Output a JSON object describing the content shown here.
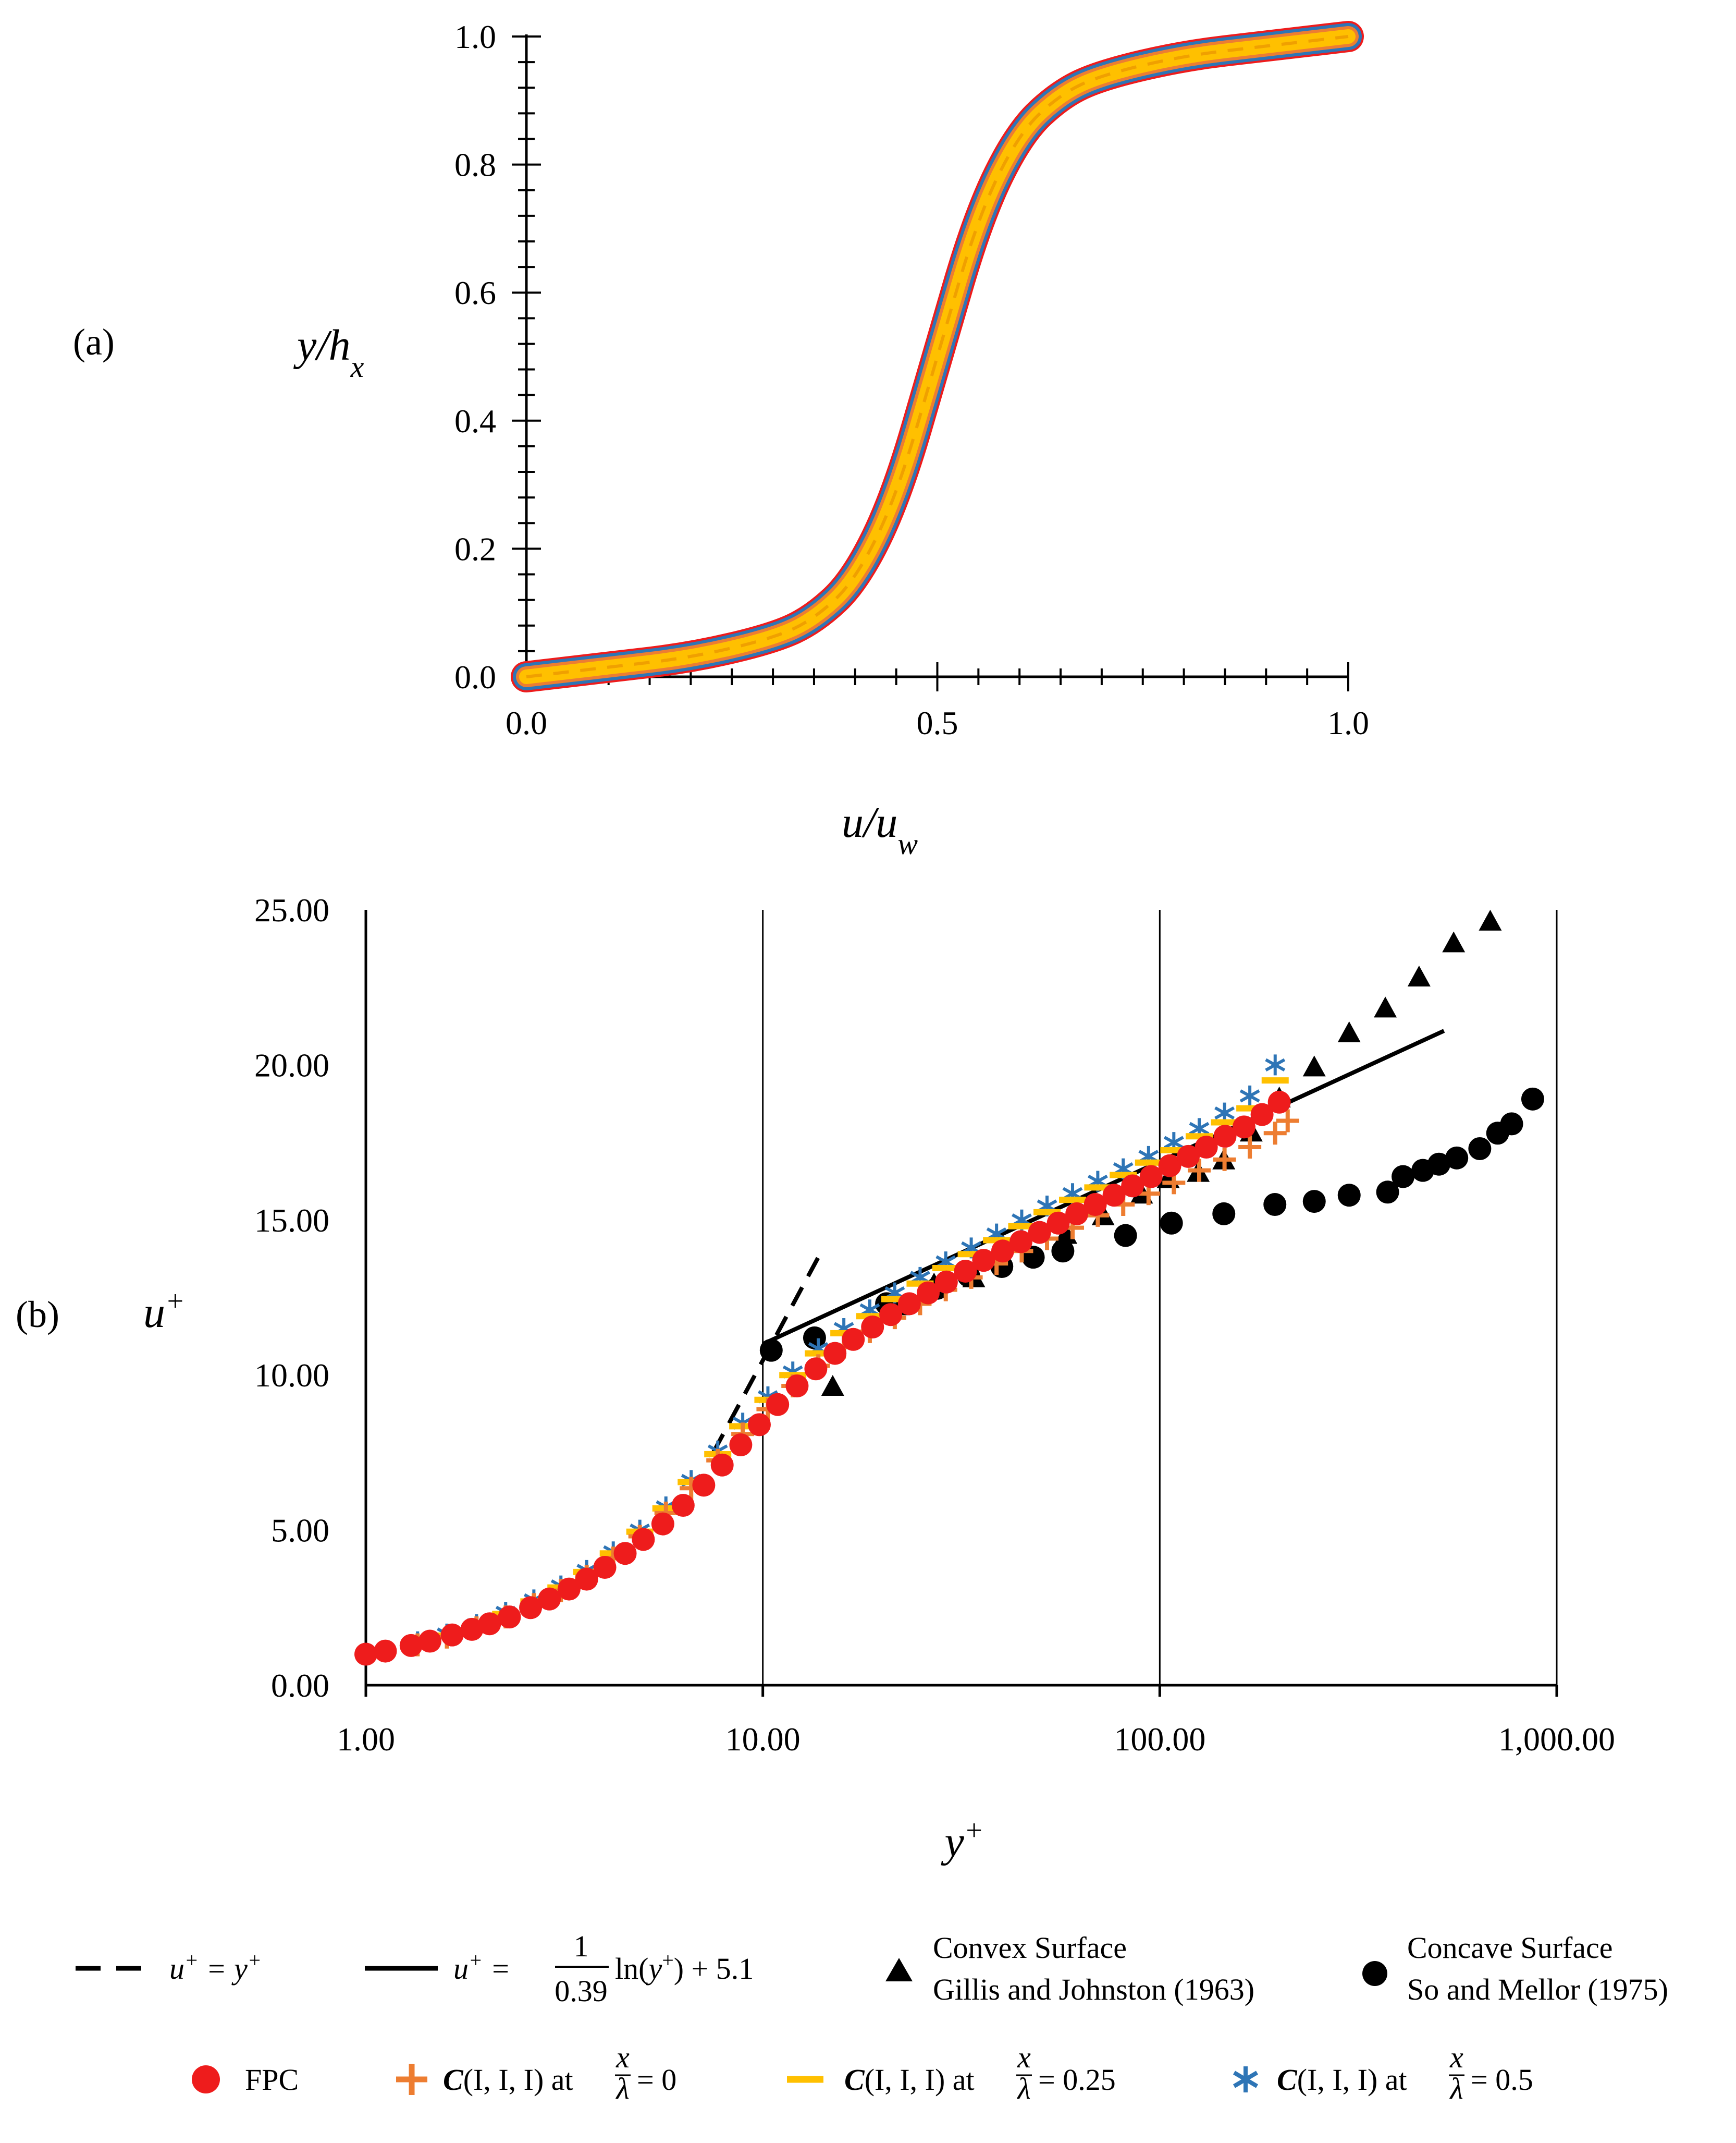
{
  "colors": {
    "fpc": "#ee1c1c",
    "c0": "#ed7d31",
    "c025": "#ffc000",
    "c05": "#2e75b6",
    "black": "#000000"
  },
  "panel_a": {
    "label": "(a)",
    "ylabel": "y/h_x",
    "xlabel": "u/u_w",
    "xticks": [
      "0.0",
      "0.5",
      "1.0"
    ],
    "yticks": [
      "0.0",
      "0.2",
      "0.4",
      "0.6",
      "0.8",
      "1.0"
    ]
  },
  "panel_b": {
    "label": "(b)",
    "ylabel": "u+",
    "xlabel": "y+",
    "xticks": [
      "1.00",
      "10.00",
      "100.00",
      "1,000.00"
    ],
    "yticks": [
      "0.00",
      "5.00",
      "10.00",
      "15.00",
      "20.00",
      "25.00"
    ]
  },
  "legend": {
    "viscous": "u+ = y+",
    "loglaw_prefix": "u+ =",
    "loglaw_num": "1",
    "loglaw_den": "0.39",
    "loglaw_suffix": "ln(y+) + 5.1",
    "convex_line1": "Convex Surface",
    "convex_line2": "Gillis  and Johnston (1963)",
    "concave_line1": "Concave Surface",
    "concave_line2": "So and Mellor  (1975)",
    "fpc": "FPC",
    "c_prefix": "C",
    "c_args": "(I, I, I) at",
    "frac_num": "x",
    "frac_den": "λ",
    "val0": "= 0",
    "val025": "= 0.25",
    "val05": "= 0.5"
  },
  "chart_data": [
    {
      "type": "line",
      "title": "",
      "xlabel": "u/u_w",
      "ylabel": "y/h_x",
      "xlim": [
        0,
        1
      ],
      "ylim": [
        0,
        1
      ],
      "series": [
        {
          "name": "FPC",
          "x": [
            0.0,
            0.1,
            0.2,
            0.3,
            0.35,
            0.4,
            0.45,
            0.5,
            0.55,
            0.6,
            0.65,
            0.7,
            0.8,
            0.9,
            1.0
          ],
          "y": [
            0.0,
            0.015,
            0.03,
            0.06,
            0.09,
            0.15,
            0.28,
            0.5,
            0.72,
            0.85,
            0.91,
            0.94,
            0.97,
            0.985,
            1.0
          ]
        },
        {
          "name": "C(I, I, I) at x/λ = 0",
          "x": [
            0.0,
            0.1,
            0.2,
            0.3,
            0.35,
            0.4,
            0.45,
            0.5,
            0.55,
            0.6,
            0.65,
            0.7,
            0.8,
            0.9,
            1.0
          ],
          "y": [
            0.0,
            0.015,
            0.03,
            0.06,
            0.09,
            0.15,
            0.28,
            0.5,
            0.72,
            0.85,
            0.91,
            0.94,
            0.97,
            0.985,
            1.0
          ]
        },
        {
          "name": "C(I, I, I) at x/λ = 0.25",
          "x": [
            0.0,
            0.1,
            0.2,
            0.3,
            0.35,
            0.4,
            0.45,
            0.5,
            0.55,
            0.6,
            0.65,
            0.7,
            0.8,
            0.9,
            1.0
          ],
          "y": [
            0.0,
            0.015,
            0.03,
            0.06,
            0.09,
            0.15,
            0.28,
            0.5,
            0.72,
            0.85,
            0.91,
            0.94,
            0.97,
            0.985,
            1.0
          ]
        },
        {
          "name": "C(I, I, I) at x/λ = 0.5",
          "x": [
            0.0,
            0.1,
            0.2,
            0.3,
            0.35,
            0.4,
            0.45,
            0.5,
            0.55,
            0.6,
            0.65,
            0.7,
            0.8,
            0.9,
            1.0
          ],
          "y": [
            0.0,
            0.015,
            0.03,
            0.06,
            0.09,
            0.15,
            0.28,
            0.5,
            0.72,
            0.85,
            0.91,
            0.94,
            0.97,
            0.985,
            1.0
          ]
        }
      ]
    },
    {
      "type": "scatter",
      "title": "",
      "xlabel": "y+",
      "ylabel": "u+",
      "xscale": "log",
      "xlim": [
        1,
        1000
      ],
      "ylim": [
        0,
        25
      ],
      "grid": "vertical lines at decades",
      "lines": [
        {
          "name": "u+ = y+",
          "style": "dashed",
          "x": [
            7.5,
            13.8
          ],
          "y": [
            7.5,
            13.8
          ]
        },
        {
          "name": "u+ = (1/0.39) ln(y+) + 5.1",
          "style": "solid",
          "x": [
            10,
            520
          ],
          "y": [
            11.0,
            21.1
          ]
        }
      ],
      "series": [
        {
          "name": "FPC",
          "marker": "circle",
          "x": [
            1.0,
            1.12,
            1.3,
            1.45,
            1.65,
            1.85,
            2.05,
            2.3,
            2.6,
            2.9,
            3.25,
            3.6,
            4.0,
            4.5,
            5.0,
            5.6,
            6.3,
            7.1,
            7.9,
            8.8,
            9.8,
            10.9,
            12.2,
            13.6,
            15.2,
            16.9,
            18.9,
            21.0,
            23.4,
            26.1,
            29.0,
            32.4,
            36.0,
            40.2,
            44.7,
            49.8,
            55.5,
            61.8,
            68.8,
            76.7,
            85.4,
            95.1,
            106,
            118,
            131,
            146,
            163,
            181,
            200
          ],
          "y": [
            1.0,
            1.1,
            1.28,
            1.42,
            1.62,
            1.8,
            1.98,
            2.2,
            2.5,
            2.78,
            3.1,
            3.42,
            3.8,
            4.25,
            4.7,
            5.2,
            5.8,
            6.45,
            7.1,
            7.75,
            8.4,
            9.05,
            9.65,
            10.2,
            10.7,
            11.15,
            11.55,
            11.95,
            12.3,
            12.65,
            13.0,
            13.35,
            13.7,
            14.0,
            14.3,
            14.6,
            14.9,
            15.2,
            15.5,
            15.8,
            16.1,
            16.4,
            16.75,
            17.05,
            17.35,
            17.7,
            18.0,
            18.4,
            18.8
          ]
        },
        {
          "name": "C(I, I, I) at x/λ = 0",
          "marker": "plus",
          "x": [
            1.35,
            1.6,
            1.9,
            2.25,
            2.65,
            3.1,
            3.6,
            4.2,
            4.9,
            5.7,
            6.6,
            7.7,
            8.9,
            10.3,
            11.9,
            13.8,
            16.0,
            18.6,
            21.5,
            24.9,
            28.9,
            33.5,
            38.8,
            44.9,
            52.0,
            60.3,
            69.8,
            80.9,
            93.7,
            108.5,
            125.7,
            145.6,
            168.6,
            195.3,
            210
          ],
          "y": [
            1.3,
            1.55,
            1.85,
            2.2,
            2.6,
            3.05,
            3.5,
            4.1,
            4.8,
            5.55,
            6.35,
            7.25,
            8.1,
            8.9,
            9.65,
            10.3,
            10.9,
            11.4,
            11.85,
            12.3,
            12.75,
            13.15,
            13.6,
            14.0,
            14.4,
            14.75,
            15.15,
            15.5,
            15.85,
            16.2,
            16.6,
            16.95,
            17.35,
            17.8,
            18.2
          ]
        },
        {
          "name": "C(I, I, I) at x/λ = 0.25",
          "marker": "dash",
          "x": [
            1.35,
            1.6,
            1.9,
            2.25,
            2.65,
            3.1,
            3.6,
            4.2,
            4.9,
            5.7,
            6.6,
            7.7,
            8.9,
            10.3,
            11.9,
            13.8,
            16.0,
            18.6,
            21.5,
            24.9,
            28.9,
            33.5,
            38.8,
            44.9,
            52.0,
            60.3,
            69.8,
            80.9,
            93.7,
            108.5,
            125.7,
            145.6,
            168.6,
            195.3
          ],
          "y": [
            1.35,
            1.6,
            1.9,
            2.3,
            2.7,
            3.15,
            3.65,
            4.25,
            4.95,
            5.7,
            6.55,
            7.45,
            8.35,
            9.2,
            10.0,
            10.7,
            11.35,
            11.9,
            12.45,
            12.95,
            13.45,
            13.9,
            14.35,
            14.8,
            15.25,
            15.65,
            16.05,
            16.45,
            16.85,
            17.25,
            17.7,
            18.15,
            18.6,
            19.5
          ]
        },
        {
          "name": "C(I, I, I) at x/λ = 0.5",
          "marker": "asterisk",
          "x": [
            1.35,
            1.6,
            1.9,
            2.25,
            2.65,
            3.1,
            3.6,
            4.2,
            4.9,
            5.7,
            6.6,
            7.7,
            8.9,
            10.3,
            11.9,
            13.8,
            16.0,
            18.6,
            21.5,
            24.9,
            28.9,
            33.5,
            38.8,
            44.9,
            52.0,
            60.3,
            69.8,
            80.9,
            93.7,
            108.5,
            125.7,
            145.6,
            168.6,
            195.3
          ],
          "y": [
            1.4,
            1.65,
            1.95,
            2.35,
            2.75,
            3.2,
            3.7,
            4.3,
            5.0,
            5.75,
            6.6,
            7.55,
            8.45,
            9.3,
            10.1,
            10.85,
            11.5,
            12.1,
            12.65,
            13.15,
            13.65,
            14.1,
            14.55,
            15.0,
            15.45,
            15.85,
            16.25,
            16.65,
            17.05,
            17.5,
            17.95,
            18.45,
            19.0,
            20.0
          ]
        },
        {
          "name": "Convex Surface Gillis and Johnston (1963)",
          "marker": "triangle",
          "x": [
            15,
            22,
            27,
            34,
            58,
            72,
            90,
            105,
            125,
            145,
            170,
            200,
            245,
            300,
            370,
            450,
            550,
            680
          ],
          "y": [
            9.6,
            12.2,
            12.9,
            13.1,
            14.5,
            15.1,
            15.8,
            16.3,
            16.5,
            16.9,
            17.8,
            18.9,
            19.9,
            21.0,
            21.8,
            22.8,
            23.9,
            24.6
          ],
          "color": "#000000"
        },
        {
          "name": "Concave Surface So and Mellor (1975)",
          "marker": "circle",
          "x": [
            10.5,
            13.5,
            20.5,
            27.5,
            33,
            40,
            48,
            57,
            82,
            107,
            145,
            195,
            245,
            300,
            375,
            410,
            460,
            505,
            560,
            640,
            710,
            770,
            870
          ],
          "y": [
            10.8,
            11.2,
            12.3,
            12.8,
            13.2,
            13.5,
            13.8,
            14.0,
            14.5,
            14.9,
            15.2,
            15.5,
            15.6,
            15.8,
            15.9,
            16.4,
            16.6,
            16.8,
            17.0,
            17.3,
            17.8,
            18.1,
            18.9
          ],
          "color": "#000000"
        }
      ]
    }
  ]
}
